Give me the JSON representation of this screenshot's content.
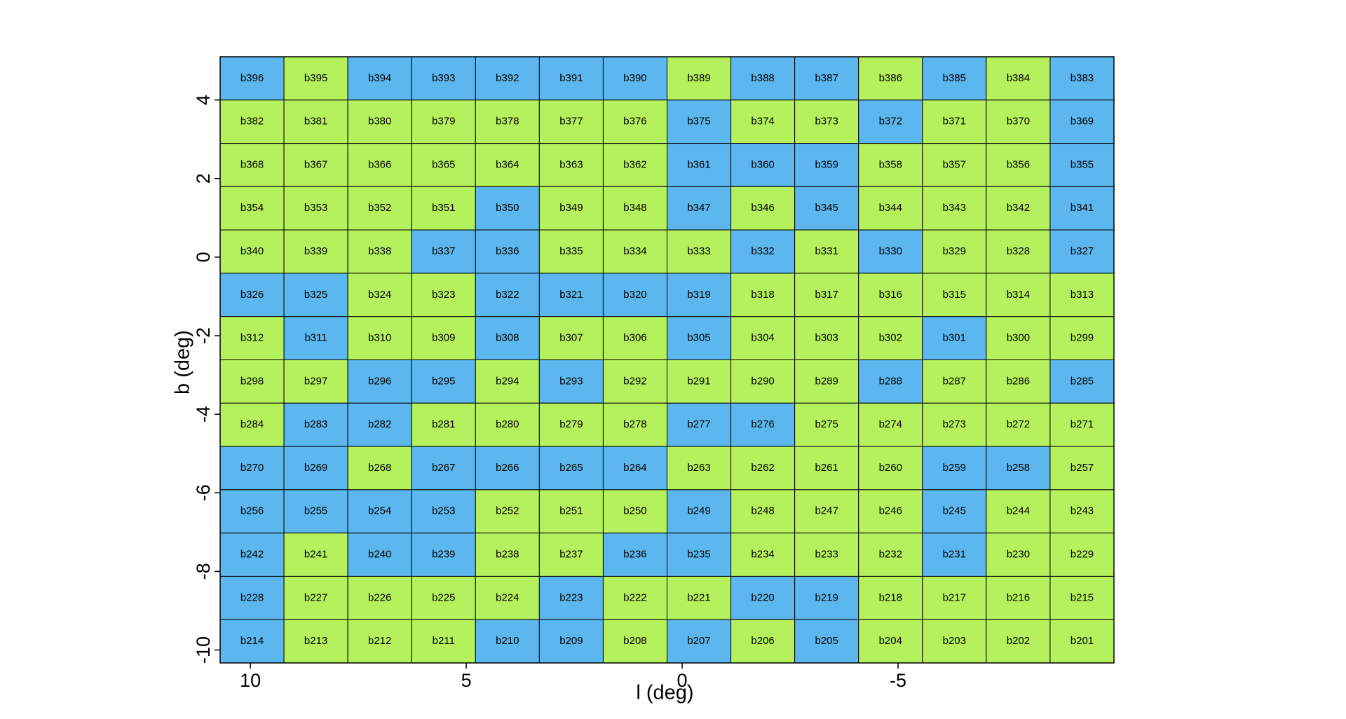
{
  "chart_data": {
    "type": "tiles",
    "xlabel": "l (deg)",
    "ylabel": "b (deg)",
    "xlim": [
      10.7,
      -10
    ],
    "ylim": [
      -10.33,
      5.1
    ],
    "xticks": [
      10,
      5,
      0,
      -5
    ],
    "yticks": [
      4,
      2,
      0,
      -2,
      -4,
      -6,
      -8,
      -10
    ],
    "tiles": [
      [
        "b396",
        "b395",
        "b394",
        "b393",
        "b392",
        "b391",
        "b390",
        "b389",
        "b388",
        "b387",
        "b386",
        "b385",
        "b384",
        "b383"
      ],
      [
        "b382",
        "b381",
        "b380",
        "b379",
        "b378",
        "b377",
        "b376",
        "b375",
        "b374",
        "b373",
        "b372",
        "b371",
        "b370",
        "b369"
      ],
      [
        "b368",
        "b367",
        "b366",
        "b365",
        "b364",
        "b363",
        "b362",
        "b361",
        "b360",
        "b359",
        "b358",
        "b357",
        "b356",
        "b355"
      ],
      [
        "b354",
        "b353",
        "b352",
        "b351",
        "b350",
        "b349",
        "b348",
        "b347",
        "b346",
        "b345",
        "b344",
        "b343",
        "b342",
        "b341"
      ],
      [
        "b340",
        "b339",
        "b338",
        "b337",
        "b336",
        "b335",
        "b334",
        "b333",
        "b332",
        "b331",
        "b330",
        "b329",
        "b328",
        "b327"
      ],
      [
        "b326",
        "b325",
        "b324",
        "b323",
        "b322",
        "b321",
        "b320",
        "b319",
        "b318",
        "b317",
        "b316",
        "b315",
        "b314",
        "b313"
      ],
      [
        "b312",
        "b311",
        "b310",
        "b309",
        "b308",
        "b307",
        "b306",
        "b305",
        "b304",
        "b303",
        "b302",
        "b301",
        "b300",
        "b299"
      ],
      [
        "b298",
        "b297",
        "b296",
        "b295",
        "b294",
        "b293",
        "b292",
        "b291",
        "b290",
        "b289",
        "b288",
        "b287",
        "b286",
        "b285"
      ],
      [
        "b284",
        "b283",
        "b282",
        "b281",
        "b280",
        "b279",
        "b278",
        "b277",
        "b276",
        "b275",
        "b274",
        "b273",
        "b272",
        "b271"
      ],
      [
        "b270",
        "b269",
        "b268",
        "b267",
        "b266",
        "b265",
        "b264",
        "b263",
        "b262",
        "b261",
        "b260",
        "b259",
        "b258",
        "b257"
      ],
      [
        "b256",
        "b255",
        "b254",
        "b253",
        "b252",
        "b251",
        "b250",
        "b249",
        "b248",
        "b247",
        "b246",
        "b245",
        "b244",
        "b243"
      ],
      [
        "b242",
        "b241",
        "b240",
        "b239",
        "b238",
        "b237",
        "b236",
        "b235",
        "b234",
        "b233",
        "b232",
        "b231",
        "b230",
        "b229"
      ],
      [
        "b228",
        "b227",
        "b226",
        "b225",
        "b224",
        "b223",
        "b222",
        "b221",
        "b220",
        "b219",
        "b218",
        "b217",
        "b216",
        "b215"
      ],
      [
        "b214",
        "b213",
        "b212",
        "b211",
        "b210",
        "b209",
        "b208",
        "b207",
        "b206",
        "b205",
        "b204",
        "b203",
        "b202",
        "b201"
      ]
    ],
    "colors": [
      "#5cb7ef",
      "#b4f15c"
    ],
    "tile_colors": [
      "01000001001010",
      "11111110110110",
      "11111110001110",
      "11110110101110",
      "11100111010110",
      "00110000111111",
      "10110110111011",
      "11001011110110",
      "10011110011111",
      "00100001111001",
      "00001110111011",
      "01001100111011",
      "01111011001111",
      "01110010101111"
    ]
  }
}
